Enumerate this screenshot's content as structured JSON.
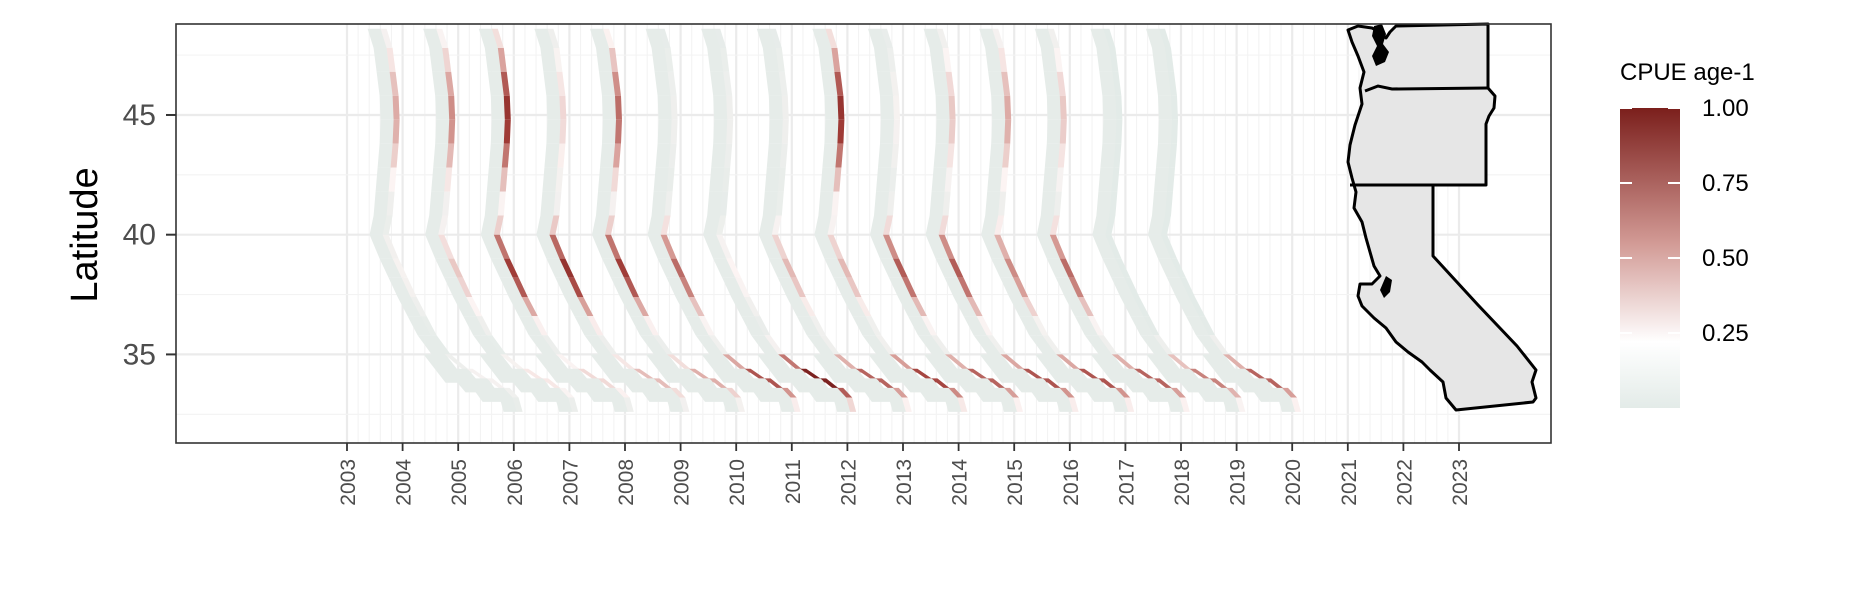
{
  "chart_data": {
    "type": "heatmap",
    "title": "",
    "xlabel": "",
    "ylabel": "Latitude",
    "y_ticks": [
      35,
      40,
      45
    ],
    "y_tick_labels": [
      "35",
      "40",
      "45"
    ],
    "ylim": [
      31.3,
      48.8
    ],
    "x_tick_labels": [
      "2003",
      "2004",
      "2005",
      "2006",
      "2007",
      "2008",
      "2009",
      "2010",
      "2011",
      "2012",
      "2013",
      "2014",
      "2015",
      "2016",
      "2017",
      "2018",
      "2019",
      "2020",
      "2021",
      "2022",
      "2023"
    ],
    "legend": {
      "title": "CPUE age-1",
      "placement": "right",
      "ticks": [
        0.25,
        0.5,
        0.75,
        1.0
      ],
      "tick_labels": [
        "0.25",
        "0.50",
        "0.75",
        "1.00"
      ],
      "colors": {
        "low": "#e3ebe8",
        "mid": "#ffffff",
        "high": "#7b1f1c"
      }
    },
    "series": [
      {
        "year": "2004",
        "intensity": {
          "north": 0.45,
          "central": 0.15,
          "south": 0.15
        }
      },
      {
        "year": "2005",
        "intensity": {
          "north": 0.55,
          "central": 0.35,
          "south": 0.25
        }
      },
      {
        "year": "2006",
        "intensity": {
          "north": 0.85,
          "central": 0.8,
          "south": 0.3
        }
      },
      {
        "year": "2007",
        "intensity": {
          "north": 0.3,
          "central": 0.85,
          "south": 0.4
        }
      },
      {
        "year": "2008",
        "intensity": {
          "north": 0.65,
          "central": 0.8,
          "south": 0.45
        }
      },
      {
        "year": "2009",
        "intensity": {
          "north": 0.1,
          "central": 0.65,
          "south": 0.75
        }
      },
      {
        "year": "2010",
        "intensity": {
          "north": 0.1,
          "central": 0.2,
          "south": 1.0
        }
      },
      {
        "year": "2011",
        "intensity": {
          "north": 0.1,
          "central": 0.4,
          "south": 0.7
        }
      },
      {
        "year": "2012",
        "intensity": {
          "north": 0.85,
          "central": 0.4,
          "south": 0.8
        }
      },
      {
        "year": "2013",
        "intensity": {
          "north": 0.15,
          "central": 0.7,
          "south": 0.7
        }
      },
      {
        "year": "2014",
        "intensity": {
          "north": 0.35,
          "central": 0.7,
          "south": 0.75
        }
      },
      {
        "year": "2015",
        "intensity": {
          "north": 0.45,
          "central": 0.55,
          "south": 0.75
        }
      },
      {
        "year": "2016",
        "intensity": {
          "north": 0.35,
          "central": 0.65,
          "south": 0.7
        }
      },
      {
        "year": "2017",
        "intensity": {
          "north": 0.0,
          "central": 0.0,
          "south": 0.6
        }
      },
      {
        "year": "2018",
        "intensity": {
          "north": 0.0,
          "central": 0.0,
          "south": 0.7
        }
      }
    ],
    "grid": true,
    "inset_map": "us-west-coast-states-outline"
  }
}
